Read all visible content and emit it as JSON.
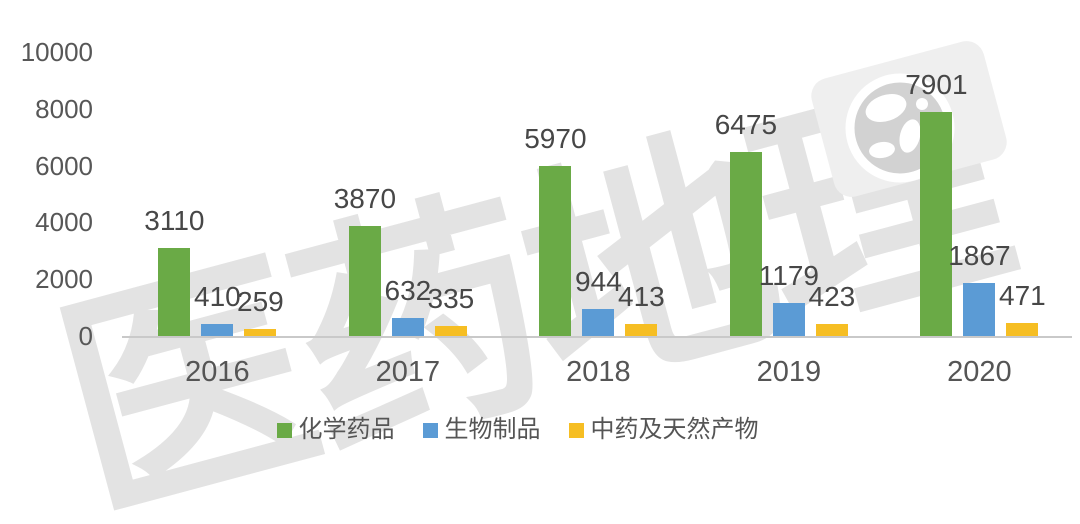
{
  "watermark": {
    "text": "医药地理",
    "icon": "globe-icon",
    "color": "#E3E3E3"
  },
  "colors": {
    "series_green": "#6AAA46",
    "series_blue": "#5B9BD5",
    "series_gold": "#F6BE23",
    "axis_line": "#C9C9C9",
    "axis_text": "#555555",
    "data_label_text": "#474747"
  },
  "chart_data": {
    "type": "bar",
    "title": "",
    "xlabel": "",
    "ylabel": "",
    "categories": [
      "2016",
      "2017",
      "2018",
      "2019",
      "2020"
    ],
    "series": [
      {
        "name": "化学药品",
        "color": "#6AAA46",
        "values": [
          3110,
          3870,
          5970,
          6475,
          7901
        ]
      },
      {
        "name": "生物制品",
        "color": "#5B9BD5",
        "values": [
          410,
          632,
          944,
          1179,
          1867
        ]
      },
      {
        "name": "中药及天然产物",
        "color": "#F6BE23",
        "values": [
          259,
          335,
          413,
          423,
          471
        ]
      }
    ],
    "y_axis": {
      "min": 0,
      "max": 10000,
      "step": 2000,
      "ticks": [
        "0",
        "2000",
        "4000",
        "6000",
        "8000",
        "10000"
      ]
    },
    "grid": false,
    "data_labels": true,
    "legend_position": "bottom"
  }
}
